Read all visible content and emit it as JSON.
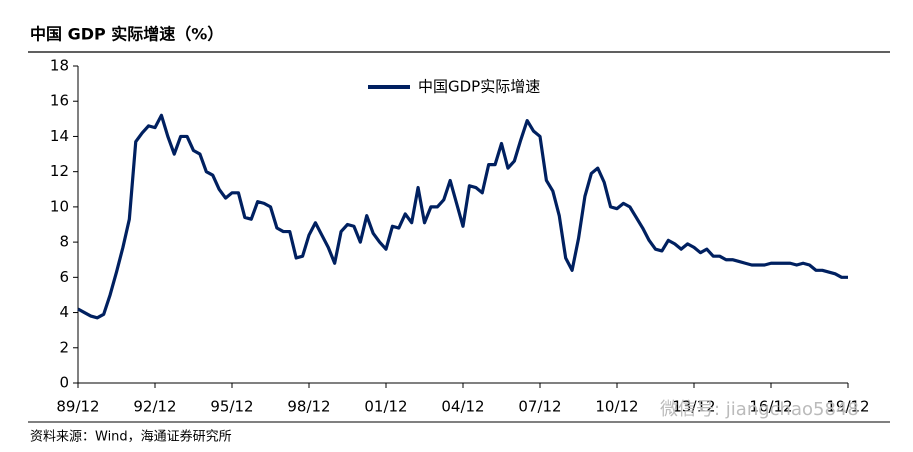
{
  "chart_data": {
    "type": "line",
    "title": "中国 GDP 实际增速（%）",
    "source": "资料来源：Wind，海通证券研究所",
    "watermark": "微信号: jiangchao5848",
    "categories": [
      "89/12",
      null,
      null,
      null,
      null,
      null,
      null,
      null,
      null,
      null,
      null,
      null,
      "92/12",
      null,
      null,
      null,
      null,
      null,
      null,
      null,
      null,
      null,
      null,
      null,
      "95/12",
      null,
      null,
      null,
      null,
      null,
      null,
      null,
      null,
      null,
      null,
      null,
      "98/12",
      null,
      null,
      null,
      null,
      null,
      null,
      null,
      null,
      null,
      null,
      null,
      "01/12",
      null,
      null,
      null,
      null,
      null,
      null,
      null,
      null,
      null,
      null,
      null,
      "04/12",
      null,
      null,
      null,
      null,
      null,
      null,
      null,
      null,
      null,
      null,
      null,
      "07/12",
      null,
      null,
      null,
      null,
      null,
      null,
      null,
      null,
      null,
      null,
      null,
      "10/12",
      null,
      null,
      null,
      null,
      null,
      null,
      null,
      null,
      null,
      null,
      null,
      "13/12",
      null,
      null,
      null,
      null,
      null,
      null,
      null,
      null,
      null,
      null,
      null,
      "16/12",
      null,
      null,
      null,
      null,
      null,
      null,
      null,
      null,
      null,
      null,
      null,
      "19/12"
    ],
    "series": [
      {
        "name": "中国GDP实际增速",
        "color": "#002060",
        "values": [
          4.2,
          4.0,
          3.8,
          3.7,
          3.9,
          5.0,
          6.3,
          7.7,
          9.3,
          13.7,
          14.2,
          14.6,
          14.5,
          15.2,
          14.0,
          13.0,
          14.0,
          14.0,
          13.2,
          13.0,
          12.0,
          11.8,
          11.0,
          10.5,
          10.8,
          10.8,
          9.4,
          9.3,
          10.3,
          10.2,
          10.0,
          8.8,
          8.6,
          8.6,
          7.1,
          7.2,
          8.4,
          9.1,
          8.4,
          7.7,
          6.8,
          8.6,
          9.0,
          8.9,
          8.0,
          9.5,
          8.5,
          8.0,
          7.6,
          8.9,
          8.8,
          9.6,
          9.1,
          11.1,
          9.1,
          10.0,
          10.0,
          10.4,
          11.5,
          10.2,
          8.9,
          11.2,
          11.1,
          10.8,
          12.4,
          12.4,
          13.6,
          12.2,
          12.6,
          13.8,
          14.9,
          14.3,
          14.0,
          11.5,
          10.9,
          9.5,
          7.1,
          6.4,
          8.2,
          10.6,
          11.9,
          12.2,
          11.4,
          10.0,
          9.9,
          10.2,
          10.0,
          9.4,
          8.8,
          8.1,
          7.6,
          7.5,
          8.1,
          7.9,
          7.6,
          7.9,
          7.7,
          7.4,
          7.6,
          7.2,
          7.2,
          7.0,
          7.0,
          6.9,
          6.8,
          6.7,
          6.7,
          6.7,
          6.8,
          6.8,
          6.8,
          6.8,
          6.7,
          6.8,
          6.7,
          6.4,
          6.4,
          6.3,
          6.2,
          6.0,
          6.0
        ]
      }
    ],
    "ylim": [
      0,
      18
    ],
    "yticks": [
      0,
      2,
      4,
      6,
      8,
      10,
      12,
      14,
      16,
      18
    ],
    "legend": "top"
  }
}
